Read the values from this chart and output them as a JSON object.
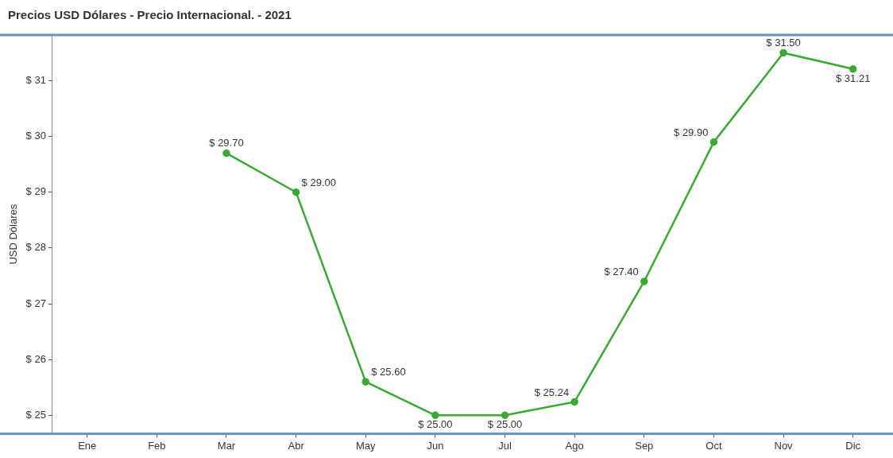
{
  "chart_data": {
    "type": "line",
    "title": "Precios USD Dólares - Precio Internacional. - 2021",
    "ylabel": "USD Dólares",
    "categories": [
      "Ene",
      "Feb",
      "Mar",
      "Abr",
      "May",
      "Jun",
      "Jul",
      "Ago",
      "Sep",
      "Oct",
      "Nov",
      "Dic"
    ],
    "series": [
      {
        "color": "#3aaa35",
        "values": [
          null,
          null,
          29.7,
          29.0,
          25.6,
          25.0,
          25.0,
          25.24,
          27.4,
          29.9,
          31.5,
          31.21
        ],
        "value_labels": [
          null,
          null,
          "$ 29.70",
          "$ 29.00",
          "$ 25.60",
          "$ 25.00",
          "$ 25.00",
          "$ 25.24",
          "$ 27.40",
          "$ 29.90",
          "$ 31.50",
          "$ 31.21"
        ]
      }
    ],
    "ylim": [
      24.67,
      31.82
    ],
    "yticks": [
      {
        "value": 25,
        "label": "$ 25"
      },
      {
        "value": 26,
        "label": "$ 26"
      },
      {
        "value": 27,
        "label": "$ 27"
      },
      {
        "value": 28,
        "label": "$ 28"
      },
      {
        "value": 29,
        "label": "$ 29"
      },
      {
        "value": 30,
        "label": "$ 30"
      },
      {
        "value": 31,
        "label": "$ 31"
      }
    ],
    "grid": false,
    "legend": false,
    "marker": "circle",
    "line_style": "solid"
  }
}
